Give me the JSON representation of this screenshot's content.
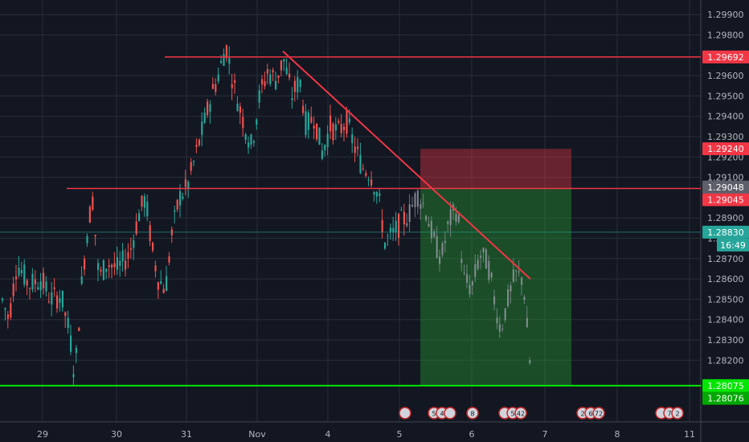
{
  "chart_data": {
    "type": "candlestick",
    "title": "",
    "xlabel": "",
    "ylabel": "",
    "ylim": [
      1.2808,
      1.2996
    ],
    "x_ticks": [
      "29",
      "30",
      "31",
      "Nov",
      "4",
      "5",
      "6",
      "7",
      "8",
      "11"
    ],
    "y_ticks": [
      "1.29900",
      "1.29800",
      "1.29600",
      "1.29500",
      "1.29400",
      "1.29300",
      "1.29200",
      "1.29100",
      "1.28900",
      "1.28800",
      "1.28700",
      "1.28600",
      "1.28500",
      "1.28400",
      "1.28300",
      "1.28200"
    ],
    "horizontal_levels": [
      {
        "price": 1.29692,
        "label": "1.29692",
        "color": "#f23645"
      },
      {
        "price": 1.29045,
        "label": "1.29045",
        "color": "#f23645"
      },
      {
        "price": 1.28075,
        "label": "1.28075",
        "color": "#00e600"
      }
    ],
    "price_badges": [
      {
        "price": 1.2924,
        "label": "1.29240",
        "color": "#f23645"
      },
      {
        "price": 1.29048,
        "label": "1.29048",
        "color": "#5d606b"
      },
      {
        "price": 1.2883,
        "label": "1.28830",
        "color": "#26a69a"
      },
      {
        "label": "16:49",
        "color": "#26a69a"
      },
      {
        "price": 1.28076,
        "label": "1.28076",
        "color": "#00a800"
      }
    ],
    "position": {
      "type": "short",
      "entry": 1.29048,
      "stop": 1.2924,
      "target": 1.28075,
      "start_time": "Nov 5",
      "end_time": "Nov 7"
    },
    "trendlines": [
      {
        "from_time": "Nov 1",
        "from_price": 1.2972,
        "to_time": "Nov 6",
        "to_price": 1.286
      }
    ],
    "candles": [],
    "event_markers": [
      {
        "time": "Nov 5",
        "icons": [
          "flag"
        ]
      },
      {
        "time": "Nov 5",
        "icons": [
          "5",
          "4",
          "flag"
        ]
      },
      {
        "time": "Nov 6",
        "icons": [
          "8"
        ]
      },
      {
        "time": "Nov 6",
        "icons": [
          "flag",
          "5",
          "42"
        ]
      },
      {
        "time": "Nov 7",
        "icons": [
          "2",
          "6",
          "72"
        ]
      },
      {
        "time": "Nov 8",
        "icons": [
          "flag",
          "7",
          "2"
        ]
      }
    ]
  },
  "colors": {
    "background": "#131722",
    "grid": "#2a2e39",
    "up": "#26a69a",
    "down": "#ef5350",
    "resistance": "#f23645",
    "support": "#00e600",
    "stop_zone": "rgba(242,54,69,0.38)",
    "target_zone": "rgba(38,160,50,0.40)"
  }
}
